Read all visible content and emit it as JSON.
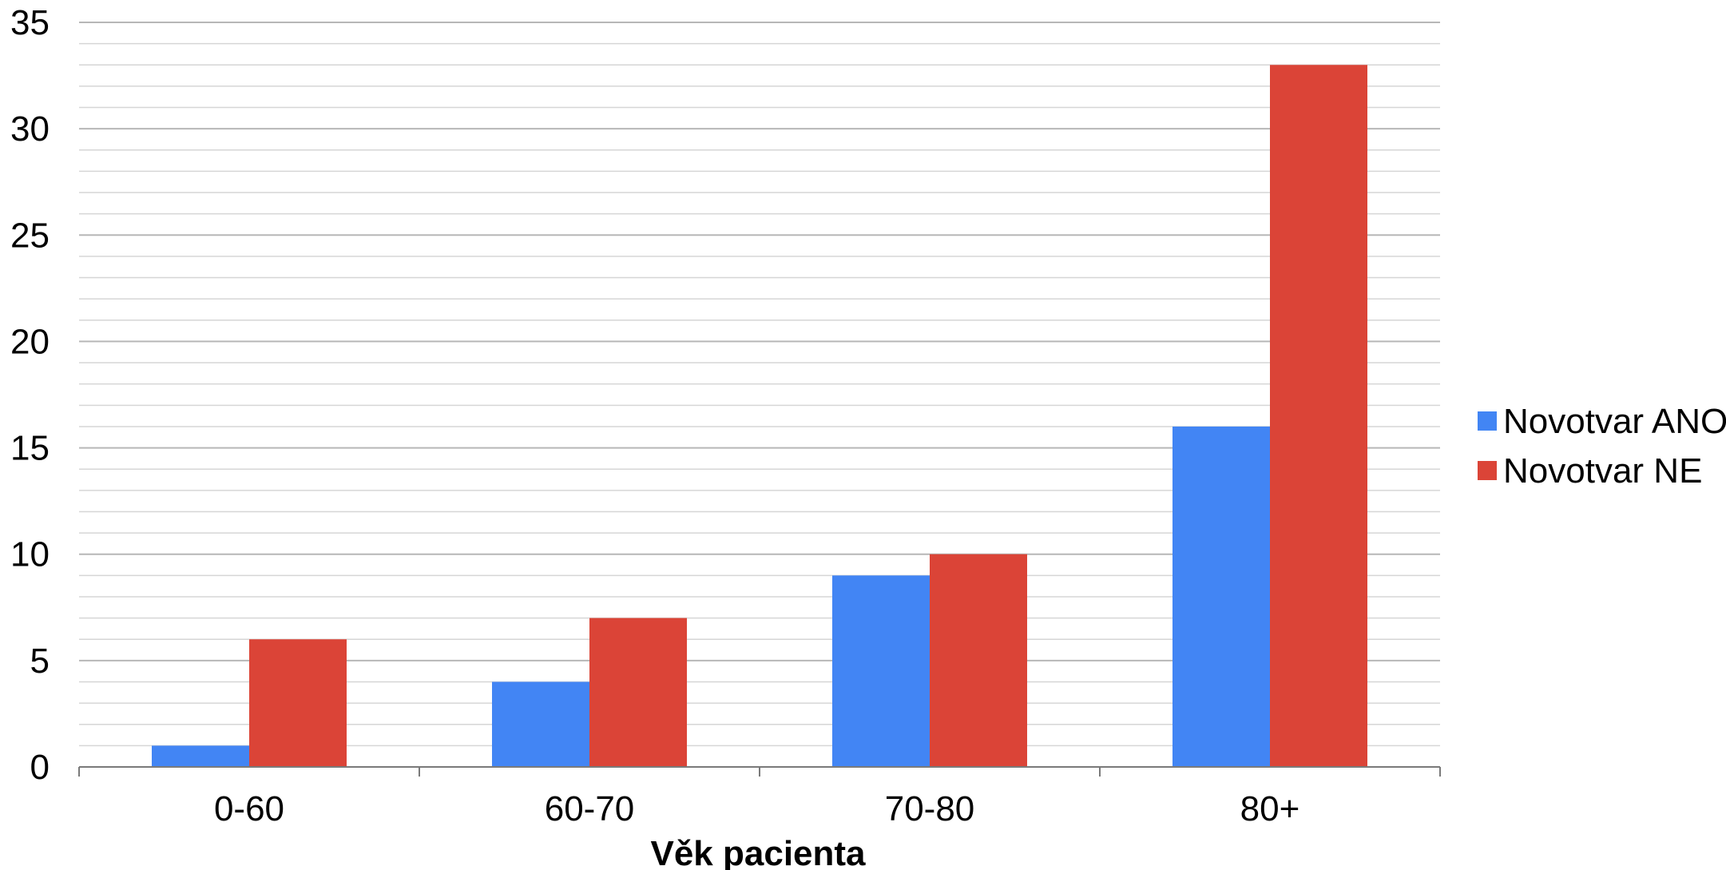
{
  "chart_data": {
    "type": "bar",
    "title": "",
    "xlabel": "Věk pacienta",
    "ylabel": "",
    "categories": [
      "0-60",
      "60-70",
      "70-80",
      "80+"
    ],
    "series": [
      {
        "name": "Novotvar ANO",
        "color": "#4285f4",
        "values": [
          1,
          4,
          9,
          16
        ]
      },
      {
        "name": "Novotvar NE",
        "color": "#db4437",
        "values": [
          6,
          7,
          10,
          33
        ]
      }
    ],
    "ylim": [
      0,
      35
    ],
    "yticks": [
      0,
      5,
      10,
      15,
      20,
      25,
      30,
      35
    ],
    "minor_step": 1,
    "grid": true,
    "legend_position": "right"
  }
}
